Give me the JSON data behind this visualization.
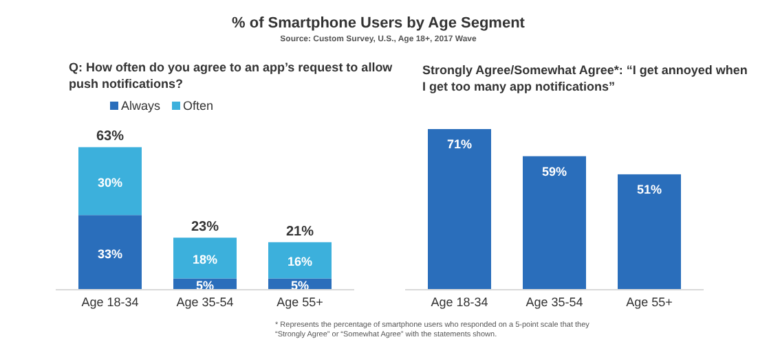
{
  "chart_data": [
    {
      "type": "bar",
      "stacked": true,
      "title": "% of Smartphone Users by Age Segment",
      "subtitle": "Q: How often do you agree to an app’s request to allow push notifications?",
      "annotations": [
        "Source: Custom Survey, U.S., Age 18+, 2017 Wave"
      ],
      "categories": [
        "Age 18-34",
        "Age 35-54",
        "Age 55+"
      ],
      "legend": "top",
      "series": [
        {
          "name": "Always",
          "color": "#2a6ebb",
          "values": [
            33,
            5,
            5
          ],
          "value_labels": [
            "33%",
            "5%",
            "5%"
          ]
        },
        {
          "name": "Often",
          "color": "#3cb0dc",
          "values": [
            30,
            18,
            16
          ],
          "value_labels": [
            "30%",
            "18%",
            "16%"
          ]
        }
      ],
      "totals": [
        "63%",
        "23%",
        "21%"
      ]
    },
    {
      "type": "bar",
      "title": "Strongly Agree/Somewhat Agree*: “I get annoyed when I get too many app notifications”",
      "annotations": [
        "* Represents the percentage of smartphone users who responded on a 5-point scale that they “Strongly Agree” or “Somewhat Agree” with the statements shown."
      ],
      "categories": [
        "Age 18-34",
        "Age 35-54",
        "Age 55+"
      ],
      "series": [
        {
          "color": "#2a6ebb",
          "values": [
            71,
            59,
            51
          ],
          "value_labels": [
            "71%",
            "59%",
            "51%"
          ]
        }
      ]
    }
  ]
}
